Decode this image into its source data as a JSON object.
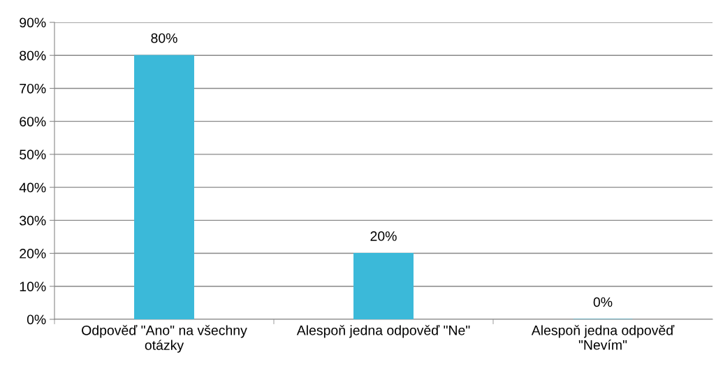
{
  "chart_data": {
    "type": "bar",
    "categories": [
      "Odpověď \"Ano\" na všechny\notázky",
      "Alespoň jedna odpověď \"Ne\"",
      "Alespoň jedna odpověď\n\"Nevím\""
    ],
    "values": [
      80,
      20,
      0
    ],
    "value_labels": [
      "80%",
      "20%",
      "0%"
    ],
    "color": "#3bb9d9",
    "ylim": [
      0,
      90
    ],
    "yticks": [
      {
        "value": 0,
        "label": "0%"
      },
      {
        "value": 10,
        "label": "10%"
      },
      {
        "value": 20,
        "label": "20%"
      },
      {
        "value": 30,
        "label": "30%"
      },
      {
        "value": 40,
        "label": "40%"
      },
      {
        "value": 50,
        "label": "50%"
      },
      {
        "value": 60,
        "label": "60%"
      },
      {
        "value": 70,
        "label": "70%"
      },
      {
        "value": 80,
        "label": "80%"
      },
      {
        "value": 90,
        "label": "90%"
      }
    ],
    "grid": "y",
    "legend": false
  }
}
